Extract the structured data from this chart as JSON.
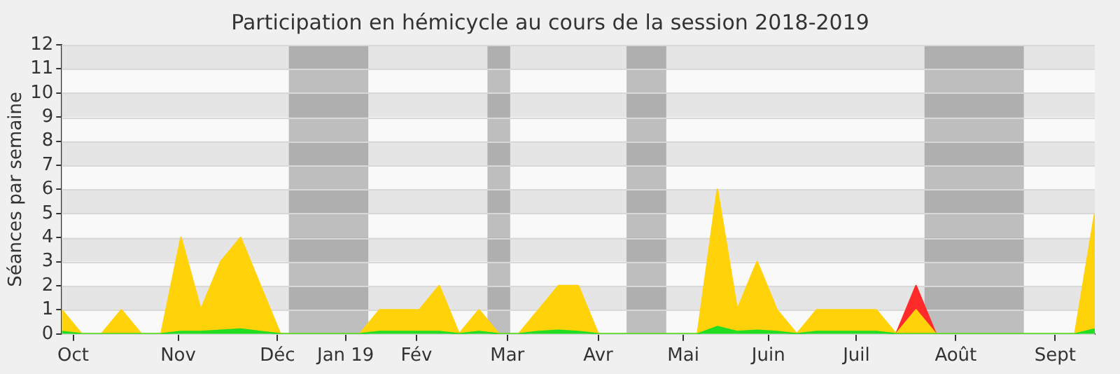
{
  "chart_data": {
    "type": "area",
    "title": "Participation en hémicycle au cours de la session 2018-2019",
    "ylabel": "Séances par semaine",
    "x": [
      "2018-10-01",
      "2018-10-08",
      "2018-10-15",
      "2018-10-22",
      "2018-10-29",
      "2018-11-05",
      "2018-11-12",
      "2018-11-19",
      "2018-11-26",
      "2018-12-03",
      "2018-12-10",
      "2018-12-17",
      "2018-12-24",
      "2018-12-31",
      "2019-01-07",
      "2019-01-14",
      "2019-01-21",
      "2019-01-28",
      "2019-02-04",
      "2019-02-11",
      "2019-02-18",
      "2019-02-25",
      "2019-03-04",
      "2019-03-11",
      "2019-03-18",
      "2019-03-25",
      "2019-04-01",
      "2019-04-08",
      "2019-04-15",
      "2019-04-22",
      "2019-04-29",
      "2019-05-06",
      "2019-05-13",
      "2019-05-20",
      "2019-05-27",
      "2019-06-03",
      "2019-06-10",
      "2019-06-17",
      "2019-06-24",
      "2019-07-01",
      "2019-07-08",
      "2019-07-15",
      "2019-07-22",
      "2019-07-29",
      "2019-08-05",
      "2019-08-12",
      "2019-08-19",
      "2019-08-26",
      "2019-09-02",
      "2019-09-09",
      "2019-09-16",
      "2019-09-23",
      "2019-09-30"
    ],
    "stacked": true,
    "series": [
      {
        "color": "#22dd22",
        "values": [
          0.1,
          0,
          0,
          0,
          0,
          0,
          0.1,
          0.1,
          0.15,
          0.2,
          0.1,
          0,
          0,
          0,
          0,
          0,
          0.1,
          0.1,
          0.1,
          0.1,
          0,
          0.1,
          0,
          0,
          0.1,
          0.15,
          0.1,
          0,
          0,
          0,
          0,
          0,
          0,
          0.3,
          0.1,
          0.15,
          0.1,
          0,
          0.1,
          0.1,
          0.1,
          0.1,
          0,
          0,
          0,
          0,
          0,
          0,
          0,
          0,
          0,
          0,
          0.2
        ]
      },
      {
        "color": "#ffd20a",
        "values": [
          0.9,
          0,
          0,
          1,
          0,
          0,
          3.9,
          0.9,
          2.85,
          3.8,
          1.9,
          0,
          0,
          0,
          0,
          0,
          0.9,
          0.9,
          0.9,
          1.9,
          0,
          0.9,
          0,
          0,
          0.9,
          1.85,
          1.9,
          0,
          0,
          0,
          0,
          0,
          0,
          5.7,
          0.9,
          2.85,
          0.9,
          0,
          0.9,
          0.9,
          0.9,
          0.9,
          0,
          1,
          0,
          0,
          0,
          0,
          0,
          0,
          0,
          0,
          4.8
        ]
      },
      {
        "color": "#ff2a2a",
        "values": [
          null,
          null,
          null,
          null,
          null,
          null,
          null,
          null,
          null,
          null,
          null,
          null,
          null,
          null,
          null,
          null,
          null,
          null,
          null,
          null,
          null,
          null,
          null,
          null,
          null,
          null,
          null,
          null,
          null,
          null,
          null,
          null,
          null,
          null,
          null,
          null,
          null,
          null,
          null,
          null,
          null,
          null,
          0,
          1,
          0,
          null,
          null,
          null,
          null,
          null,
          null,
          null,
          null
        ]
      }
    ],
    "xlim": [
      "2018-10-01",
      "2019-09-30"
    ],
    "xticks": [
      {
        "value": "2018-10-05",
        "label": "Oct"
      },
      {
        "value": "2018-11-11",
        "label": "Nov"
      },
      {
        "value": "2018-12-16",
        "label": "Déc"
      },
      {
        "value": "2019-01-09",
        "label": "Jan 19"
      },
      {
        "value": "2019-02-03",
        "label": "Fév"
      },
      {
        "value": "2019-03-07",
        "label": "Mar"
      },
      {
        "value": "2019-04-08",
        "label": "Avr"
      },
      {
        "value": "2019-05-08",
        "label": "Mai"
      },
      {
        "value": "2019-06-07",
        "label": "Juin"
      },
      {
        "value": "2019-07-08",
        "label": "Juil"
      },
      {
        "value": "2019-08-12",
        "label": "Août"
      },
      {
        "value": "2019-09-16",
        "label": "Sept"
      }
    ],
    "ylim": [
      0,
      12
    ],
    "yticks": [
      0,
      1,
      2,
      3,
      4,
      5,
      6,
      7,
      8,
      9,
      10,
      11,
      12
    ],
    "bands": [
      {
        "axis": "x",
        "from": "2018-12-20",
        "to": "2019-01-17",
        "color": "#bebebe"
      },
      {
        "axis": "x",
        "from": "2019-02-28",
        "to": "2019-03-08",
        "color": "#bebebe"
      },
      {
        "axis": "x",
        "from": "2019-04-18",
        "to": "2019-05-02",
        "color": "#bebebe"
      },
      {
        "axis": "x",
        "from": "2019-08-01",
        "to": "2019-09-05",
        "color": "#bebebe"
      }
    ],
    "grid": "y",
    "legend": false,
    "marker": "none",
    "line_style": "solid"
  }
}
